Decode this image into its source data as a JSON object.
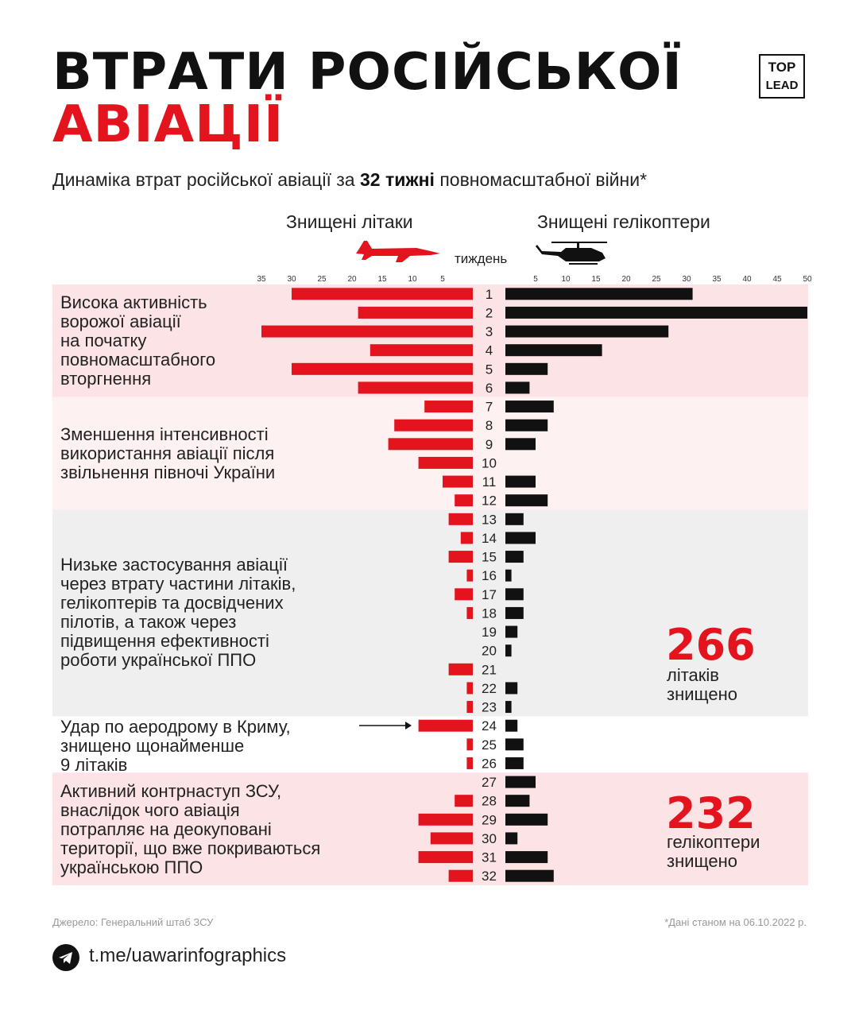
{
  "header": {
    "title_line1": "ВТРАТИ РОСІЙСЬКОЇ",
    "title_line2": "АВІАЦІЇ",
    "subtitle_before": "Динаміка втрат російської авіації за ",
    "subtitle_bold": "32 тижні",
    "subtitle_after": " повномасштабної війни*",
    "logo_top": "TOP",
    "logo_bottom": "LEAD"
  },
  "colors": {
    "accent": "#e3141e",
    "dark": "#111111",
    "band_pink": "#fbe3e6",
    "band_lightpink": "#fdf1f2",
    "band_grey": "#efefef"
  },
  "chart_data": {
    "type": "bar",
    "orientation": "horizontal-butterfly",
    "title": "Динаміка втрат російської авіації за 32 тижні повномасштабної війни*",
    "left_label": "Знищені літаки",
    "right_label": "Знищені гелікоптери",
    "center_label": "тиждень",
    "left_axis_ticks": [
      35,
      30,
      25,
      20,
      15,
      10,
      5
    ],
    "right_axis_ticks": [
      5,
      10,
      15,
      20,
      25,
      30,
      35,
      40,
      45,
      50
    ],
    "left_xlim": [
      0,
      35
    ],
    "right_xlim": [
      0,
      50
    ],
    "categories": [
      "1",
      "2",
      "3",
      "4",
      "5",
      "6",
      "7",
      "8",
      "9",
      "10",
      "11",
      "12",
      "13",
      "14",
      "15",
      "16",
      "17",
      "18",
      "19",
      "20",
      "21",
      "22",
      "23",
      "24",
      "25",
      "26",
      "27",
      "28",
      "29",
      "30",
      "31",
      "32"
    ],
    "series": [
      {
        "name": "Знищені літаки",
        "color": "#e3141e",
        "values": [
          30,
          19,
          35,
          17,
          30,
          19,
          8,
          13,
          14,
          9,
          5,
          3,
          4,
          2,
          4,
          1,
          3,
          1,
          0,
          0,
          4,
          1,
          1,
          9,
          1,
          1,
          0,
          3,
          9,
          7,
          9,
          4
        ]
      },
      {
        "name": "Знищені гелікоптери",
        "color": "#111111",
        "values": [
          31,
          50,
          27,
          16,
          7,
          4,
          8,
          7,
          5,
          0,
          5,
          7,
          3,
          5,
          3,
          1,
          3,
          3,
          2,
          1,
          0,
          2,
          1,
          2,
          3,
          3,
          5,
          4,
          7,
          2,
          7,
          8
        ]
      }
    ],
    "annotations": [
      {
        "weeks": [
          1,
          6
        ],
        "text": "Висока активність\nворожої авіації\nна початку\nповномасштабного\nвторгнення"
      },
      {
        "weeks": [
          7,
          12
        ],
        "text": "Зменшення інтенсивності\nвикористання авіації після\nзвільнення півночі України"
      },
      {
        "weeks": [
          13,
          23
        ],
        "text": "Низьке застосування авіації\nчерез втрату частини літаків,\nгелікоптерів та досвідчених\nпілотів, а також через\nпідвищення ефективності\nроботи української ППО"
      },
      {
        "weeks": [
          24,
          26
        ],
        "text": "Удар по аеродрому в Криму,\nзнищено щонайменше\n9 літаків"
      },
      {
        "weeks": [
          27,
          32
        ],
        "text": "Активний контрнаступ ЗСУ,\nвнаслідок чого авіація\nпотрапляє на деокуповані\nтериторії, що вже покриваються\nукраїнською ППО"
      }
    ]
  },
  "totals": {
    "planes_number": "266",
    "planes_label": "літаків\nзнищено",
    "helis_number": "232",
    "helis_label": "гелікоптери\nзнищено"
  },
  "footer": {
    "source": "Джерело: Генеральний штаб ЗСУ",
    "as_of": "*Дані станом на 06.10.2022 р.",
    "link": "t.me/uawarinfographics"
  }
}
